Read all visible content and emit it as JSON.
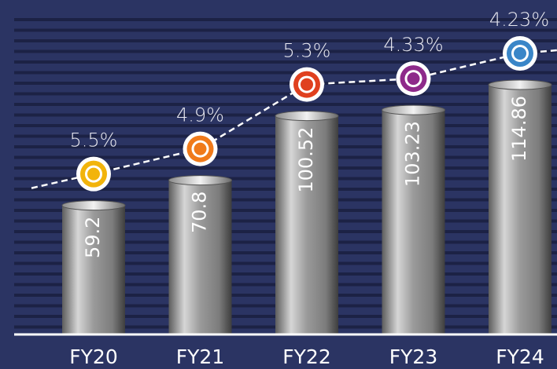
{
  "chart_data": {
    "type": "bar-line",
    "background": "#2b3463",
    "categories": [
      "FY20",
      "FY21",
      "FY22",
      "FY23",
      "FY24"
    ],
    "series": [
      {
        "values": [
          59.2,
          70.8,
          100.52,
          103.23,
          114.86
        ]
      },
      {
        "values": [
          5.5,
          4.9,
          5.3,
          4.33,
          4.23
        ],
        "value_labels": [
          "5.5%",
          "4.9%",
          "5.3%",
          "4.33%",
          "4.23%"
        ],
        "colors": [
          "#f2b40c",
          "#f07a1a",
          "#e0401f",
          "#8e2a8a",
          "#3a86c8"
        ]
      }
    ]
  }
}
